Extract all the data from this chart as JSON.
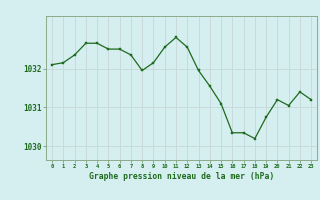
{
  "x": [
    0,
    1,
    2,
    3,
    4,
    5,
    6,
    7,
    8,
    9,
    10,
    11,
    12,
    13,
    14,
    15,
    16,
    17,
    18,
    19,
    20,
    21,
    22,
    23
  ],
  "y": [
    1032.1,
    1032.15,
    1032.35,
    1032.65,
    1032.65,
    1032.5,
    1032.5,
    1032.35,
    1031.95,
    1032.15,
    1032.55,
    1032.8,
    1032.55,
    1031.95,
    1031.55,
    1031.1,
    1030.35,
    1030.35,
    1030.2,
    1030.75,
    1031.2,
    1031.05,
    1031.4,
    1031.2
  ],
  "line_color": "#1e6b1e",
  "marker_color": "#1e6b1e",
  "bg_color": "#d5eef0",
  "grid_color": "#c8dada",
  "spine_color": "#8aaa8a",
  "xlabel": "Graphe pression niveau de la mer (hPa)",
  "xlabel_color": "#1e6b1e",
  "tick_color": "#1e6b1e",
  "yticks": [
    1030,
    1031,
    1032
  ],
  "ylim": [
    1029.65,
    1033.35
  ],
  "xlim": [
    -0.5,
    23.5
  ],
  "xticks": [
    0,
    1,
    2,
    3,
    4,
    5,
    6,
    7,
    8,
    9,
    10,
    11,
    12,
    13,
    14,
    15,
    16,
    17,
    18,
    19,
    20,
    21,
    22,
    23
  ],
  "figsize": [
    3.2,
    2.0
  ],
  "dpi": 100
}
